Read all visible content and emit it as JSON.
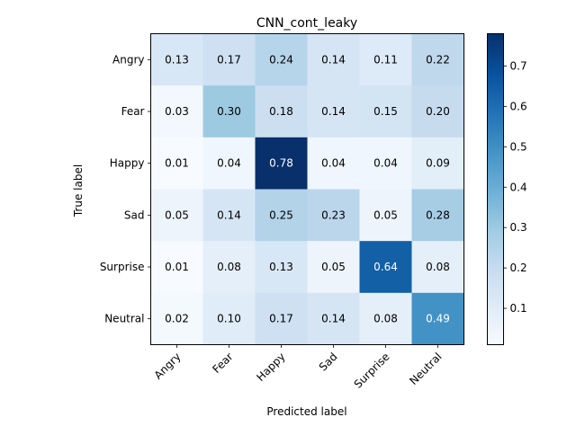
{
  "chart_data": {
    "type": "heatmap",
    "title": "CNN_cont_leaky",
    "xlabel": "Predicted label",
    "ylabel": "True label",
    "x_categories": [
      "Angry",
      "Fear",
      "Happy",
      "Sad",
      "Surprise",
      "Neutral"
    ],
    "y_categories": [
      "Angry",
      "Fear",
      "Happy",
      "Sad",
      "Surprise",
      "Neutral"
    ],
    "values": [
      [
        0.13,
        0.17,
        0.24,
        0.14,
        0.11,
        0.22
      ],
      [
        0.03,
        0.3,
        0.18,
        0.14,
        0.15,
        0.2
      ],
      [
        0.01,
        0.04,
        0.78,
        0.04,
        0.04,
        0.09
      ],
      [
        0.05,
        0.14,
        0.25,
        0.23,
        0.05,
        0.28
      ],
      [
        0.01,
        0.08,
        0.13,
        0.05,
        0.64,
        0.08
      ],
      [
        0.02,
        0.1,
        0.17,
        0.14,
        0.08,
        0.49
      ]
    ],
    "value_labels": [
      [
        "0.13",
        "0.17",
        "0.24",
        "0.14",
        "0.11",
        "0.22"
      ],
      [
        "0.03",
        "0.30",
        "0.18",
        "0.14",
        "0.15",
        "0.20"
      ],
      [
        "0.01",
        "0.04",
        "0.78",
        "0.04",
        "0.04",
        "0.09"
      ],
      [
        "0.05",
        "0.14",
        "0.25",
        "0.23",
        "0.05",
        "0.28"
      ],
      [
        "0.01",
        "0.08",
        "0.13",
        "0.05",
        "0.64",
        "0.08"
      ],
      [
        "0.02",
        "0.10",
        "0.17",
        "0.14",
        "0.08",
        "0.49"
      ]
    ],
    "colormap": "Blues",
    "color_range": [
      0.01,
      0.78
    ],
    "colorbar_ticks": [
      0.1,
      0.2,
      0.3,
      0.4,
      0.5,
      0.6,
      0.7
    ],
    "colorbar_tick_labels": [
      "0.1",
      "0.2",
      "0.3",
      "0.4",
      "0.5",
      "0.6",
      "0.7"
    ],
    "grid": false,
    "x_tick_rotation": "45 degrees"
  }
}
